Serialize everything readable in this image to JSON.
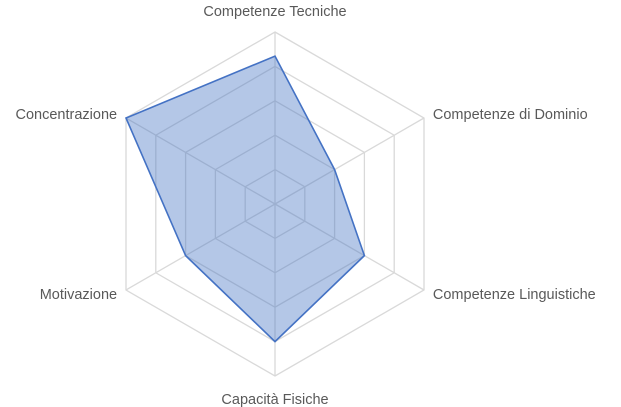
{
  "chart_data": {
    "type": "radar",
    "axes": [
      "Competenze Tecniche",
      "Competenze di Dominio",
      "Competenze Linguistiche",
      "Capacità Fisiche",
      "Motivazione",
      "Concentrazione"
    ],
    "series": [
      {
        "values": [
          4.3,
          2.0,
          3.0,
          4.0,
          3.0,
          5.0
        ]
      }
    ],
    "rmin": 0,
    "rmax": 5,
    "ticks": [
      1,
      2,
      3,
      4,
      5
    ],
    "grid": true,
    "tick_labels_visible": false,
    "colors": {
      "fill": "#4472C4",
      "stroke": "#4472C4",
      "grid": "#d9d9d9",
      "label": "#595959"
    }
  }
}
